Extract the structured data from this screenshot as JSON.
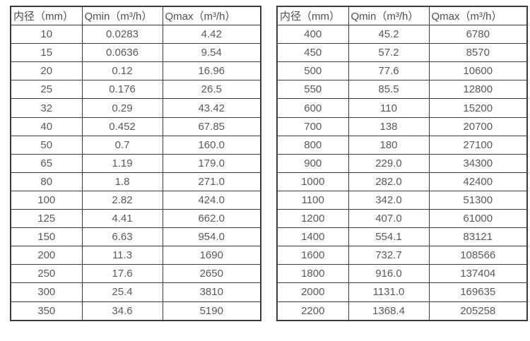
{
  "page": {
    "background_color": "#ffffff",
    "text_color": "#595959",
    "border_color": "#3b3b3b"
  },
  "chart_data": {
    "type": "table",
    "title": "",
    "tables": [
      {
        "name": "left-spec-table",
        "columns": [
          "内径（mm）",
          "Qmin（m³/h）",
          "Qmax（m³/h）"
        ],
        "rows": [
          [
            "10",
            "0.0283",
            "4.42"
          ],
          [
            "15",
            "0.0636",
            "9.54"
          ],
          [
            "20",
            "0.12",
            "16.96"
          ],
          [
            "25",
            "0.176",
            "26.5"
          ],
          [
            "32",
            "0.29",
            "43.42"
          ],
          [
            "40",
            "0.452",
            "67.85"
          ],
          [
            "50",
            "0.7",
            "160.0"
          ],
          [
            "65",
            "1.19",
            "179.0"
          ],
          [
            "80",
            "1.8",
            "271.0"
          ],
          [
            "100",
            "2.82",
            "424.0"
          ],
          [
            "125",
            "4.41",
            "662.0"
          ],
          [
            "150",
            "6.63",
            "954.0"
          ],
          [
            "200",
            "11.3",
            "1690"
          ],
          [
            "250",
            "17.6",
            "2650"
          ],
          [
            "300",
            "25.4",
            "3810"
          ],
          [
            "350",
            "34.6",
            "5190"
          ]
        ]
      },
      {
        "name": "right-spec-table",
        "columns": [
          "内径（mm）",
          "Qmin（m³/h）",
          "Qmax（m³/h）"
        ],
        "rows": [
          [
            "400",
            "45.2",
            "6780"
          ],
          [
            "450",
            "57.2",
            "8570"
          ],
          [
            "500",
            "77.6",
            "10600"
          ],
          [
            "550",
            "85.5",
            "12800"
          ],
          [
            "600",
            "110",
            "15200"
          ],
          [
            "700",
            "138",
            "20700"
          ],
          [
            "800",
            "180",
            "27100"
          ],
          [
            "900",
            "229.0",
            "34300"
          ],
          [
            "1000",
            "282.0",
            "42400"
          ],
          [
            "1100",
            "342.0",
            "51300"
          ],
          [
            "1200",
            "407.0",
            "61000"
          ],
          [
            "1400",
            "554.1",
            "83121"
          ],
          [
            "1600",
            "732.7",
            "108566"
          ],
          [
            "1800",
            "916.0",
            "137404"
          ],
          [
            "2000",
            "1131.0",
            "169635"
          ],
          [
            "2200",
            "1368.4",
            "205258"
          ]
        ]
      }
    ]
  }
}
